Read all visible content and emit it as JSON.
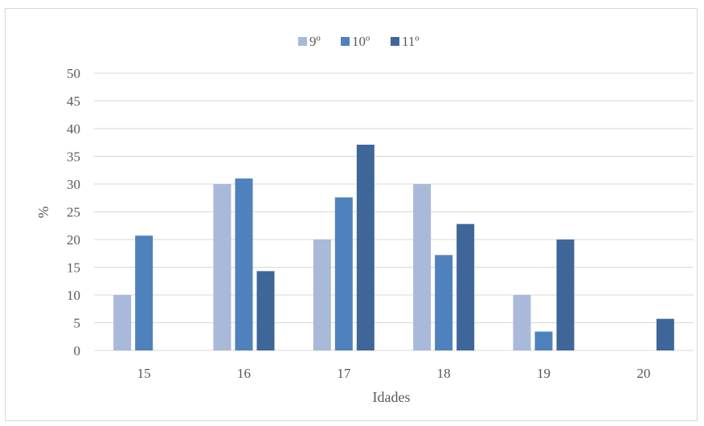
{
  "chart_data": {
    "type": "bar",
    "categories": [
      "15",
      "16",
      "17",
      "18",
      "19",
      "20"
    ],
    "series": [
      {
        "name": "9º",
        "color": "#a9b9d9",
        "values": [
          10,
          30,
          20,
          30,
          10,
          0
        ]
      },
      {
        "name": "10º",
        "color": "#4f81bd",
        "values": [
          20.7,
          31,
          27.6,
          17.2,
          3.4,
          0
        ]
      },
      {
        "name": "11º",
        "color": "#3e6699",
        "values": [
          0,
          14.3,
          37.1,
          22.8,
          20,
          5.7
        ]
      }
    ],
    "xlabel": "Idades",
    "ylabel": "%",
    "ylim": [
      0,
      50
    ],
    "yticks": [
      0,
      5,
      10,
      15,
      20,
      25,
      30,
      35,
      40,
      45,
      50
    ],
    "grid": true,
    "legend_position": "top-center",
    "gridline_color": "#d9d9d9"
  }
}
